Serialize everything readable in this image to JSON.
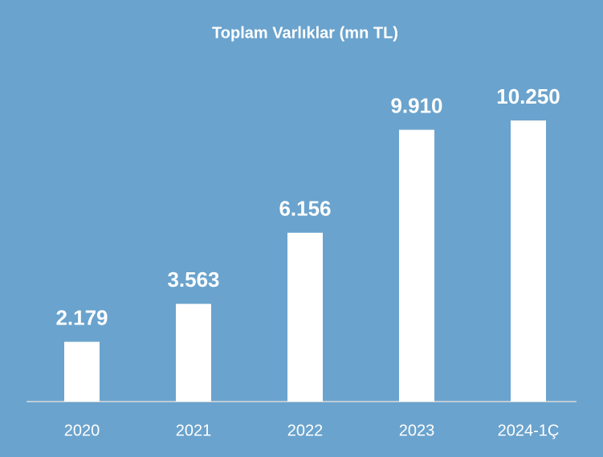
{
  "chart_data": {
    "type": "bar",
    "title": "Toplam Varlıklar (mn TL)",
    "categories": [
      "2020",
      "2021",
      "2022",
      "2023",
      "2024-1Ç"
    ],
    "values": [
      2179,
      3563,
      6156,
      9910,
      10250
    ],
    "value_labels": [
      "2.179",
      "3.563",
      "6.156",
      "9.910",
      "10.250"
    ],
    "color": "#ffffff",
    "background": "#6aa3cd"
  }
}
